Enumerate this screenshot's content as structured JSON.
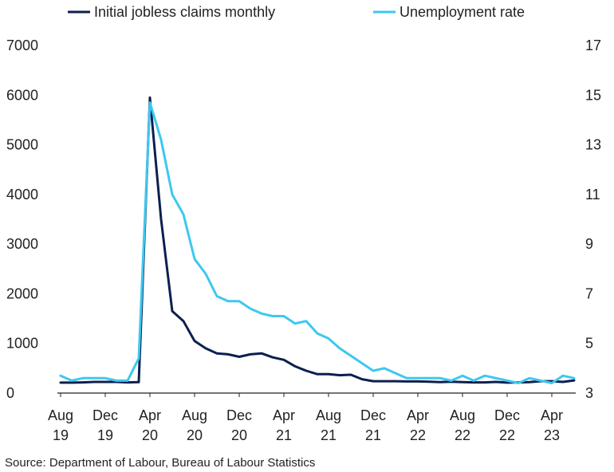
{
  "source": "Source: Department of Labour, Bureau of Labour Statistics",
  "chart_data": {
    "type": "line",
    "title": "",
    "xlabel": "",
    "x": [
      "2019-08",
      "2019-09",
      "2019-10",
      "2019-11",
      "2019-12",
      "2020-01",
      "2020-02",
      "2020-03",
      "2020-04",
      "2020-05",
      "2020-06",
      "2020-07",
      "2020-08",
      "2020-09",
      "2020-10",
      "2020-11",
      "2020-12",
      "2021-01",
      "2021-02",
      "2021-03",
      "2021-04",
      "2021-05",
      "2021-06",
      "2021-07",
      "2021-08",
      "2021-09",
      "2021-10",
      "2021-11",
      "2021-12",
      "2022-01",
      "2022-02",
      "2022-03",
      "2022-04",
      "2022-05",
      "2022-06",
      "2022-07",
      "2022-08",
      "2022-09",
      "2022-10",
      "2022-11",
      "2022-12",
      "2023-01",
      "2023-02",
      "2023-03",
      "2023-04",
      "2023-05",
      "2023-06"
    ],
    "x_tick_labels": [
      {
        "x": "2019-08",
        "line1": "Aug",
        "line2": "19"
      },
      {
        "x": "2019-12",
        "line1": "Dec",
        "line2": "19"
      },
      {
        "x": "2020-04",
        "line1": "Apr",
        "line2": "20"
      },
      {
        "x": "2020-08",
        "line1": "Aug",
        "line2": "20"
      },
      {
        "x": "2020-12",
        "line1": "Dec",
        "line2": "20"
      },
      {
        "x": "2021-04",
        "line1": "Apr",
        "line2": "21"
      },
      {
        "x": "2021-08",
        "line1": "Aug",
        "line2": "21"
      },
      {
        "x": "2021-12",
        "line1": "Dec",
        "line2": "21"
      },
      {
        "x": "2022-04",
        "line1": "Apr",
        "line2": "22"
      },
      {
        "x": "2022-08",
        "line1": "Aug",
        "line2": "22"
      },
      {
        "x": "2022-12",
        "line1": "Dec",
        "line2": "22"
      },
      {
        "x": "2023-04",
        "line1": "Apr",
        "line2": "23"
      }
    ],
    "y_left": {
      "ylim": [
        0,
        7000
      ],
      "ticks": [
        0,
        1000,
        2000,
        3000,
        4000,
        5000,
        6000,
        7000
      ]
    },
    "y_right": {
      "ylim": [
        3,
        17
      ],
      "ticks": [
        3,
        5,
        7,
        9,
        11,
        13,
        15,
        17
      ]
    },
    "grid": false,
    "legend_position": "top",
    "series": [
      {
        "name": "Initial jobless claims monthly",
        "axis": "left",
        "color": "#0d1f4f",
        "values": [
          210,
          210,
          215,
          225,
          225,
          225,
          215,
          220,
          5950,
          3500,
          1650,
          1450,
          1050,
          900,
          800,
          780,
          730,
          780,
          800,
          720,
          670,
          540,
          450,
          380,
          380,
          360,
          370,
          280,
          240,
          240,
          240,
          235,
          235,
          230,
          220,
          230,
          220,
          215,
          215,
          225,
          210,
          215,
          220,
          240,
          240,
          225,
          255
        ]
      },
      {
        "name": "Unemployment rate",
        "axis": "right",
        "color": "#3dc8f0",
        "values": [
          3.7,
          3.5,
          3.6,
          3.6,
          3.6,
          3.5,
          3.5,
          4.4,
          14.7,
          13.2,
          11.0,
          10.2,
          8.4,
          7.8,
          6.9,
          6.7,
          6.7,
          6.4,
          6.2,
          6.1,
          6.1,
          5.8,
          5.9,
          5.4,
          5.2,
          4.8,
          4.5,
          4.2,
          3.9,
          4.0,
          3.8,
          3.6,
          3.6,
          3.6,
          3.6,
          3.5,
          3.7,
          3.5,
          3.7,
          3.6,
          3.5,
          3.4,
          3.6,
          3.5,
          3.4,
          3.7,
          3.6
        ]
      }
    ]
  }
}
